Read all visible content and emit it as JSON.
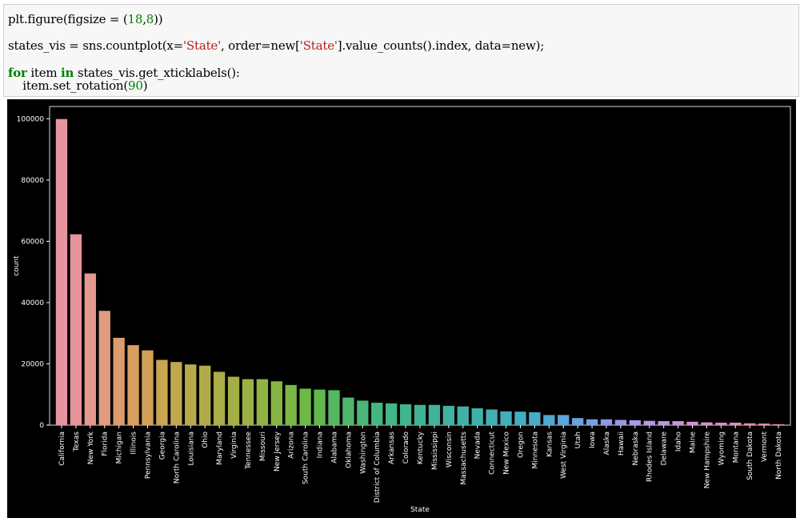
{
  "code": {
    "line1": {
      "pre": "plt.figure(figsize = (",
      "n1": "18",
      "comma": ",",
      "n2": "8",
      "post": "))"
    },
    "line2": {
      "pre": "states_vis = sns.countplot(x=",
      "s1": "'State'",
      "mid1": ", order=new[",
      "s2": "'State'",
      "post": "].value_counts().index, data=new);"
    },
    "line3": {
      "kw1": "for",
      "mid1": " item ",
      "kw2": "in",
      "post": " states_vis.get_xticklabels():"
    },
    "line4": {
      "pre": "    item.set_rotation(",
      "n1": "90",
      "post": ")"
    }
  },
  "chart_data": {
    "type": "bar",
    "xlabel": "State",
    "ylabel": "count",
    "ylim": [
      0,
      104000
    ],
    "yticks": [
      0,
      20000,
      40000,
      60000,
      80000,
      100000
    ],
    "grid": false,
    "categories": [
      "California",
      "Texas",
      "New York",
      "Florida",
      "Michigan",
      "Illinois",
      "Pennsylvania",
      "Georgia",
      "North Carolina",
      "Louisiana",
      "Ohio",
      "Maryland",
      "Virginia",
      "Tennessee",
      "Missouri",
      "New Jersey",
      "Arizona",
      "South Carolina",
      "Indiana",
      "Alabama",
      "Oklahoma",
      "Washington",
      "District of Columbia",
      "Arkansas",
      "Colorado",
      "Kentucky",
      "Mississippi",
      "Wisconsin",
      "Massachusetts",
      "Nevada",
      "Connecticut",
      "New Mexico",
      "Oregon",
      "Minnesota",
      "Kansas",
      "West Virginia",
      "Utah",
      "Iowa",
      "Alaska",
      "Hawaii",
      "Nebraska",
      "Rhodes Island",
      "Delaware",
      "Idaho",
      "Maine",
      "New Hampshire",
      "Wyoming",
      "Montana",
      "South Dakota",
      "Vermont",
      "North Dakota"
    ],
    "values": [
      99900,
      62300,
      49500,
      37300,
      28500,
      26100,
      24400,
      21300,
      20600,
      19800,
      19400,
      17400,
      15800,
      15000,
      15000,
      14300,
      13100,
      11900,
      11600,
      11400,
      9000,
      8000,
      7300,
      7100,
      6800,
      6600,
      6600,
      6300,
      6100,
      5500,
      5100,
      4500,
      4400,
      4200,
      3300,
      3300,
      2300,
      1900,
      1900,
      1700,
      1600,
      1400,
      1300,
      1300,
      1100,
      900,
      800,
      800,
      600,
      500,
      300
    ],
    "colors": [
      "#e8949f",
      "#e6939a",
      "#e59890",
      "#e09a7f",
      "#dc9c6e",
      "#d79f60",
      "#d3a258",
      "#c9a552",
      "#c0a84e",
      "#b8aa4c",
      "#b1ac4a",
      "#aaad48",
      "#a3af46",
      "#9bb145",
      "#92b245",
      "#88b445",
      "#7cb646",
      "#6eb848",
      "#60b84e",
      "#55b760",
      "#4fb66d",
      "#4ab677",
      "#46b680",
      "#43b587",
      "#42b48e",
      "#42b394",
      "#42b29a",
      "#41b2a0",
      "#40b1a6",
      "#40b0ad",
      "#41afb4",
      "#43aeba",
      "#45adc1",
      "#49abc8",
      "#4fa9d0",
      "#5aa6d7",
      "#68a3dd",
      "#789ee3",
      "#899ae6",
      "#999ae6",
      "#a69ae5",
      "#b399e2",
      "#bf97de",
      "#c995d8",
      "#d293d2",
      "#da91ca",
      "#e08ec3",
      "#e38dbb",
      "#e68db3",
      "#e88eab",
      "#e991a4"
    ]
  }
}
